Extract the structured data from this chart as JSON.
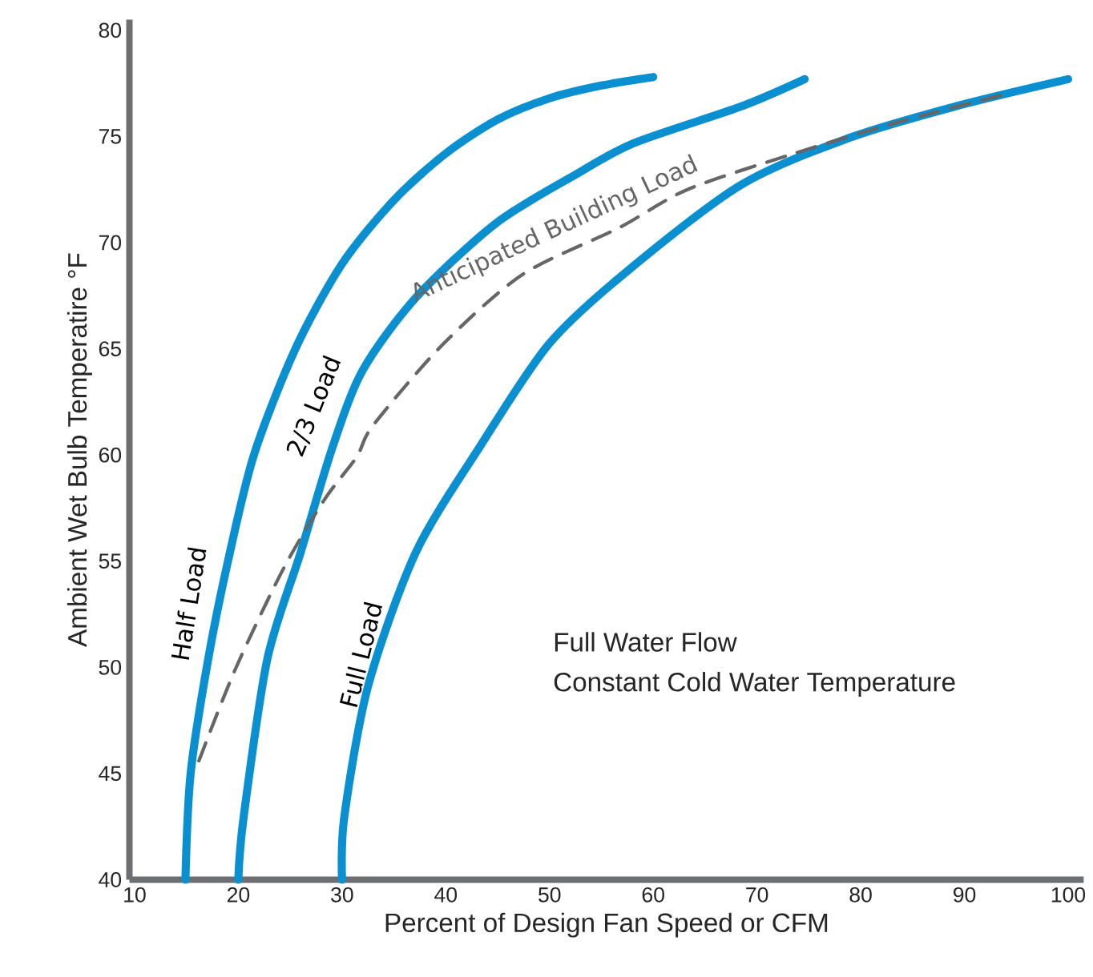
{
  "chart_data": {
    "type": "line",
    "xlabel": "Percent of Design Fan Speed or CFM",
    "ylabel": "Ambient Wet Bulb Temperatire °F",
    "xlim": [
      9.5,
      101.5
    ],
    "ylim": [
      40,
      80.5
    ],
    "xticks": [
      10,
      20,
      30,
      40,
      50,
      60,
      70,
      80,
      90,
      100
    ],
    "yticks": [
      40,
      45,
      50,
      55,
      60,
      65,
      70,
      75,
      80
    ],
    "series": [
      {
        "name": "Half Load",
        "color": "#0a8fd0",
        "line_style": "solid",
        "x": [
          14.9,
          15.4,
          17.1,
          19.0,
          21.5,
          25.5,
          30,
          35,
          40,
          45,
          50,
          55,
          60
        ],
        "values": [
          40,
          45,
          50.4,
          55,
          60,
          65,
          69,
          72,
          74.2,
          75.8,
          76.8,
          77.4,
          77.8
        ]
      },
      {
        "name": "2/3 Load",
        "color": "#0a8fd0",
        "line_style": "solid",
        "x": [
          20,
          20.5,
          22.8,
          26,
          29.1,
          32,
          37.1,
          44.8,
          52.5,
          58.2,
          68.4,
          74.6
        ],
        "values": [
          40,
          42.9,
          50.4,
          55.4,
          60.4,
          64,
          67.4,
          70.9,
          73.2,
          74.7,
          76.4,
          77.7
        ]
      },
      {
        "name": "Full Load",
        "color": "#0a8fd0",
        "line_style": "solid",
        "x": [
          30,
          30.2,
          32.5,
          37.1,
          43.3,
          49.9,
          57.1,
          68.4,
          78.7,
          89,
          100
        ],
        "values": [
          40,
          42.9,
          49.1,
          55.4,
          60.4,
          65.2,
          68.5,
          72.7,
          74.9,
          76.4,
          77.7
        ]
      },
      {
        "name": "Anticipated Building Load",
        "color": "#666666",
        "line_style": "dashed",
        "x": [
          16.2,
          19.7,
          24.3,
          28.3,
          31.4,
          33,
          39.7,
          47.4,
          56.7,
          63.3,
          73.6,
          83.8,
          94.1
        ],
        "values": [
          45.6,
          49.9,
          54.6,
          57.9,
          59.9,
          61.4,
          65.2,
          68.5,
          70.7,
          72.5,
          74.2,
          75.7,
          77
        ]
      }
    ],
    "annotations": [
      "Full Water Flow",
      "Constant Cold Water Temperature"
    ]
  }
}
